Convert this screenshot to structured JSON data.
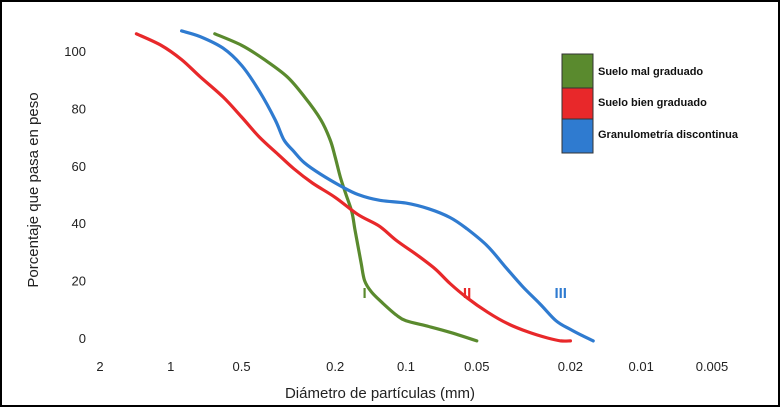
{
  "chart_data": {
    "type": "line",
    "xlabel": "Diámetro de partículas (mm)",
    "ylabel": "Porcentaje que pasa en peso",
    "x_scale": "log",
    "x_reversed": true,
    "x_ticks": [
      2,
      1,
      0.5,
      0.2,
      0.1,
      0.05,
      0.02,
      0.01,
      0.005
    ],
    "x_tick_labels": [
      "2",
      "1",
      "0.5",
      "0.2",
      "0.1",
      "0.05",
      "0.02",
      "0.01",
      "0.005"
    ],
    "y_ticks": [
      0,
      20,
      40,
      60,
      80,
      100
    ],
    "y_tick_labels": [
      "0",
      "20",
      "40",
      "60",
      "80",
      "100"
    ],
    "ylim": [
      0,
      106
    ],
    "grid": false,
    "legend_position": "top-right",
    "series": [
      {
        "name": "Suelo mal graduado",
        "color": "#5a8a2e",
        "x": [
          0.65,
          0.5,
          0.4,
          0.32,
          0.27,
          0.23,
          0.21,
          0.2,
          0.19,
          0.18,
          0.17,
          0.165,
          0.16,
          0.155,
          0.15,
          0.14,
          0.125,
          0.11,
          0.1,
          0.08,
          0.065,
          0.05
        ],
        "y": [
          106,
          102,
          97,
          91,
          84,
          76,
          69,
          63,
          56,
          50,
          44,
          38,
          32,
          26,
          20,
          16,
          12,
          8,
          6,
          4,
          2,
          -1
        ]
      },
      {
        "name": "Suelo bien graduado",
        "color": "#e8282a",
        "x": [
          1.4,
          1.1,
          0.9,
          0.75,
          0.6,
          0.5,
          0.42,
          0.35,
          0.3,
          0.25,
          0.2,
          0.16,
          0.13,
          0.11,
          0.09,
          0.075,
          0.065,
          0.055,
          0.045,
          0.037,
          0.03,
          0.025,
          0.022,
          0.02
        ],
        "y": [
          106,
          102,
          97,
          91,
          84,
          77,
          70,
          64,
          59,
          54,
          49,
          43,
          39,
          34,
          29,
          24,
          19,
          14,
          9,
          5,
          2,
          0,
          -1,
          -1
        ]
      },
      {
        "name": "Granulometría discontinua",
        "color": "#2f7bd0",
        "x": [
          0.9,
          0.75,
          0.6,
          0.5,
          0.42,
          0.36,
          0.33,
          0.3,
          0.27,
          0.23,
          0.19,
          0.16,
          0.13,
          0.1,
          0.08,
          0.065,
          0.055,
          0.045,
          0.038,
          0.032,
          0.027,
          0.023,
          0.02,
          0.018,
          0.016
        ],
        "y": [
          107,
          105,
          101,
          95,
          86,
          76,
          69,
          65,
          61,
          57,
          53,
          50,
          48,
          47,
          45,
          42,
          38,
          32,
          25,
          18,
          12,
          6,
          3,
          1,
          -1
        ]
      }
    ],
    "annotations": [
      {
        "text": "I",
        "x": 0.15,
        "y": 16,
        "color": "#5a8a2e"
      },
      {
        "text": "II",
        "x": 0.055,
        "y": 16,
        "color": "#e8282a"
      },
      {
        "text": "III",
        "x": 0.022,
        "y": 16,
        "color": "#2f7bd0"
      }
    ]
  }
}
